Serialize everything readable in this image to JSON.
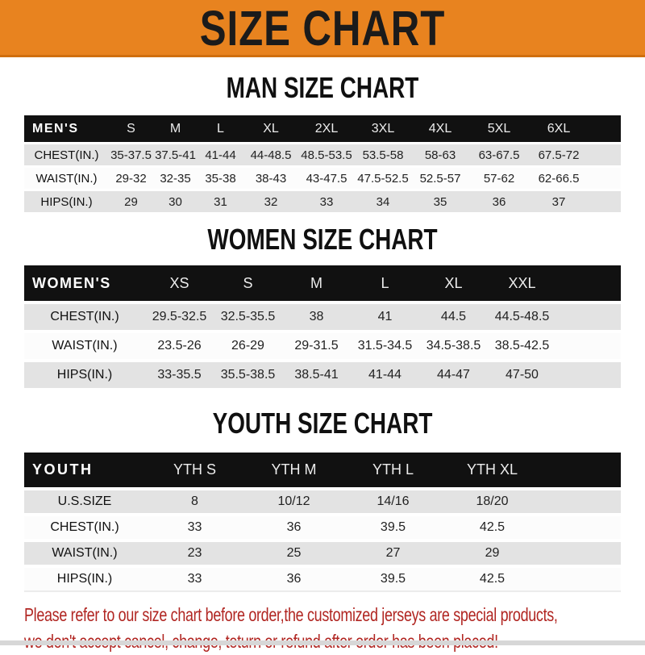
{
  "banner": {
    "title": "SIZE CHART"
  },
  "colors": {
    "banner_bg": "#E8831F",
    "banner_text": "#1B1B1B",
    "table_header_bg": "#111111",
    "row_alt_bg": "#E3E3E3",
    "footer_red": "#B12622"
  },
  "sections": [
    {
      "title": "MAN SIZE CHART",
      "table": {
        "label": "MEN'S",
        "columns": [
          "S",
          "M",
          "L",
          "XL",
          "2XL",
          "3XL",
          "4XL",
          "5XL",
          "6XL"
        ],
        "rows": [
          {
            "label": "CHEST(IN.)",
            "values": [
              "35-37.5",
              "37.5-41",
              "41-44",
              "44-48.5",
              "48.5-53.5",
              "53.5-58",
              "58-63",
              "63-67.5",
              "67.5-72"
            ]
          },
          {
            "label": "WAIST(IN.)",
            "values": [
              "29-32",
              "32-35",
              "35-38",
              "38-43",
              "43-47.5",
              "47.5-52.5",
              "52.5-57",
              "57-62",
              "62-66.5"
            ]
          },
          {
            "label": "HIPS(IN.)",
            "values": [
              "29",
              "30",
              "31",
              "32",
              "33",
              "34",
              "35",
              "36",
              "37"
            ]
          }
        ]
      }
    },
    {
      "title": "WOMEN SIZE CHART",
      "table": {
        "label": "WOMEN'S",
        "columns": [
          "XS",
          "S",
          "M",
          "L",
          "XL",
          "XXL"
        ],
        "rows": [
          {
            "label": "CHEST(IN.)",
            "values": [
              "29.5-32.5",
              "32.5-35.5",
              "38",
              "41",
              "44.5",
              "44.5-48.5"
            ]
          },
          {
            "label": "WAIST(IN.)",
            "values": [
              "23.5-26",
              "26-29",
              "29-31.5",
              "31.5-34.5",
              "34.5-38.5",
              "38.5-42.5"
            ]
          },
          {
            "label": "HIPS(IN.)",
            "values": [
              "33-35.5",
              "35.5-38.5",
              "38.5-41",
              "41-44",
              "44-47",
              "47-50"
            ]
          }
        ]
      }
    },
    {
      "title": "YOUTH SIZE CHART",
      "table": {
        "label": "YOUTH",
        "columns": [
          "YTH S",
          "YTH M",
          "YTH L",
          "YTH XL"
        ],
        "rows": [
          {
            "label": "U.S.SIZE",
            "values": [
              "8",
              "10/12",
              "14/16",
              "18/20"
            ]
          },
          {
            "label": "CHEST(IN.)",
            "values": [
              "33",
              "36",
              "39.5",
              "42.5"
            ]
          },
          {
            "label": "WAIST(IN.)",
            "values": [
              "23",
              "25",
              "27",
              "29"
            ]
          },
          {
            "label": "HIPS(IN.)",
            "values": [
              "33",
              "36",
              "39.5",
              "42.5"
            ]
          }
        ]
      }
    }
  ],
  "footer": {
    "lines": [
      "Please refer to our size chart before order,the customized jerseys are special products,",
      "we don't accept cancel, change, teturn or refund after order has been placed!"
    ]
  }
}
